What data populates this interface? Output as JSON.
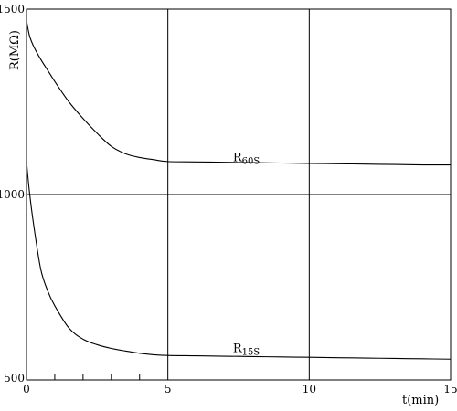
{
  "chart_data": {
    "type": "line",
    "title": "",
    "xlabel": "t(min)",
    "ylabel": "R(MΩ)",
    "xlim": [
      0,
      15
    ],
    "ylim": [
      500,
      1500
    ],
    "xticks": [
      0,
      5,
      10,
      15
    ],
    "xtick_labels": [
      "0",
      "5",
      "10",
      "15"
    ],
    "minor_xticks": [
      1,
      2,
      3,
      4
    ],
    "yticks": [
      500,
      1000,
      1500
    ],
    "ytick_labels": [
      "500",
      "1000",
      "1500"
    ],
    "grid": "vertical lines at x=5 and x=10; horizontal line at y=1000",
    "legend": "none (series labeled on the curves)",
    "series": [
      {
        "name": "R60S",
        "label_main": "R",
        "label_sub": "60S",
        "label_at": [
          7.3,
          1090
        ],
        "color": "#000000",
        "x": [
          0,
          0.1,
          0.25,
          0.5,
          0.75,
          1,
          1.5,
          2,
          2.5,
          3,
          3.5,
          4,
          4.5,
          5,
          6,
          7,
          8,
          9,
          10,
          11,
          12,
          13,
          14,
          15
        ],
        "y": [
          1470,
          1430,
          1400,
          1365,
          1335,
          1305,
          1250,
          1205,
          1165,
          1130,
          1110,
          1100,
          1094,
          1089,
          1088,
          1087,
          1086,
          1085,
          1084,
          1083,
          1082,
          1081,
          1080,
          1080
        ]
      },
      {
        "name": "R15S",
        "label_main": "R",
        "label_sub": "15S",
        "label_at": [
          7.3,
          575
        ],
        "color": "#000000",
        "x": [
          0,
          0.1,
          0.25,
          0.5,
          0.75,
          1,
          1.5,
          2,
          2.5,
          3,
          3.5,
          4,
          4.5,
          5,
          6,
          7,
          8,
          9,
          10,
          11,
          12,
          13,
          14,
          15
        ],
        "y": [
          1090,
          1010,
          920,
          800,
          740,
          700,
          640,
          610,
          595,
          585,
          578,
          572,
          568,
          566,
          565,
          564,
          563,
          562,
          561,
          560,
          559,
          558,
          557,
          556
        ]
      }
    ]
  }
}
